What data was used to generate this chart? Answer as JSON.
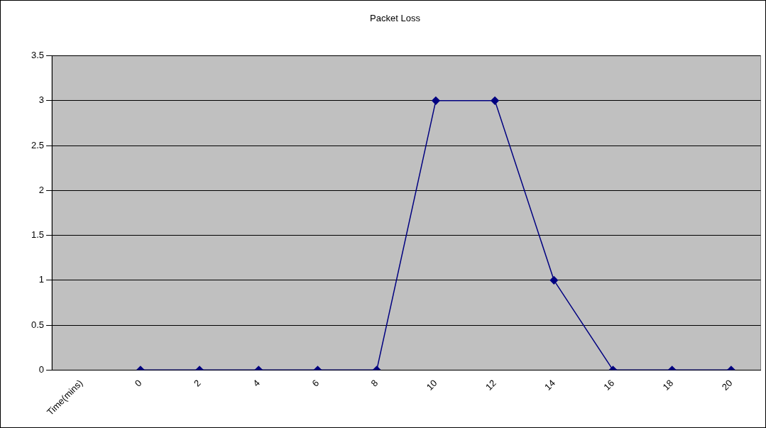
{
  "chart_data": {
    "type": "line",
    "title": "Packet Loss",
    "categories": [
      "Time(mins)",
      "0",
      "2",
      "4",
      "6",
      "8",
      "10",
      "12",
      "14",
      "16",
      "18",
      "20"
    ],
    "series": [
      {
        "color": "#000080",
        "values": [
          null,
          0,
          0,
          0,
          0,
          0,
          3,
          3,
          1,
          0,
          0,
          0
        ]
      }
    ],
    "ylim": [
      0,
      3.5
    ],
    "yticks": [
      0,
      0.5,
      1,
      1.5,
      2,
      2.5,
      3,
      3.5
    ],
    "grid": "y",
    "legend": false,
    "marker": "diamond",
    "line_style": "solid"
  }
}
